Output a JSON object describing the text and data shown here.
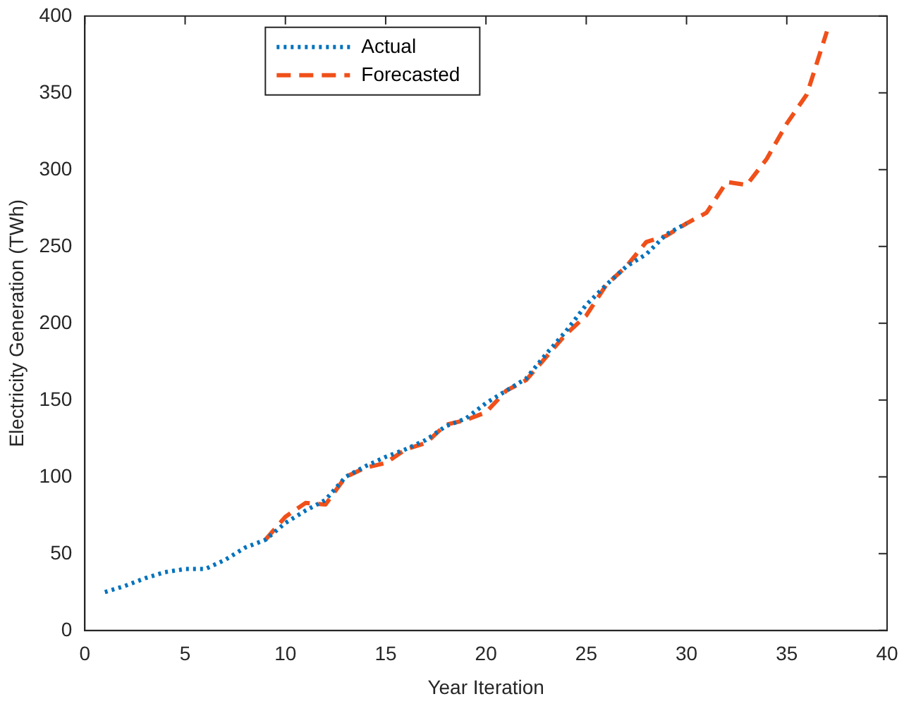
{
  "chart_data": {
    "type": "line",
    "xlabel": "Year Iteration",
    "ylabel": "Electricity Generation (TWh)",
    "xlim": [
      0,
      40
    ],
    "xticks": [
      0,
      5,
      10,
      15,
      20,
      25,
      30,
      35,
      40
    ],
    "ylim": [
      0,
      400
    ],
    "yticks": [
      0,
      50,
      100,
      150,
      200,
      250,
      300,
      350,
      400
    ],
    "grid": false,
    "legend": "top left",
    "marker": "none",
    "series": [
      {
        "name": "Actual",
        "color": "#0072bd",
        "line_style": "dotted",
        "x": [
          1,
          2,
          3,
          4,
          5,
          6,
          7,
          8,
          9,
          10,
          11,
          12,
          13,
          14,
          15,
          16,
          17,
          18,
          19,
          20,
          21,
          22,
          23,
          24,
          25,
          26,
          27,
          28,
          29,
          30
        ],
        "values": [
          25,
          29,
          34,
          38,
          40,
          40,
          46,
          54,
          59,
          70,
          78,
          85,
          100,
          107,
          113,
          118,
          124,
          133,
          138,
          148,
          156,
          164,
          180,
          195,
          212,
          225,
          237,
          245,
          258,
          265
        ]
      },
      {
        "name": "Forecasted",
        "color": "#f0501a",
        "line_style": "dashed",
        "x": [
          9,
          10,
          11,
          12,
          13,
          14,
          15,
          16,
          17,
          18,
          19,
          20,
          21,
          22,
          23,
          24,
          25,
          26,
          27,
          28,
          29,
          30,
          31,
          32,
          33,
          34,
          35,
          36,
          37
        ],
        "values": [
          59,
          74,
          83,
          82,
          100,
          106,
          109,
          118,
          122,
          134,
          137,
          142,
          156,
          163,
          178,
          193,
          205,
          225,
          237,
          253,
          257,
          265,
          272,
          292,
          290,
          307,
          330,
          349,
          390
        ]
      }
    ]
  }
}
